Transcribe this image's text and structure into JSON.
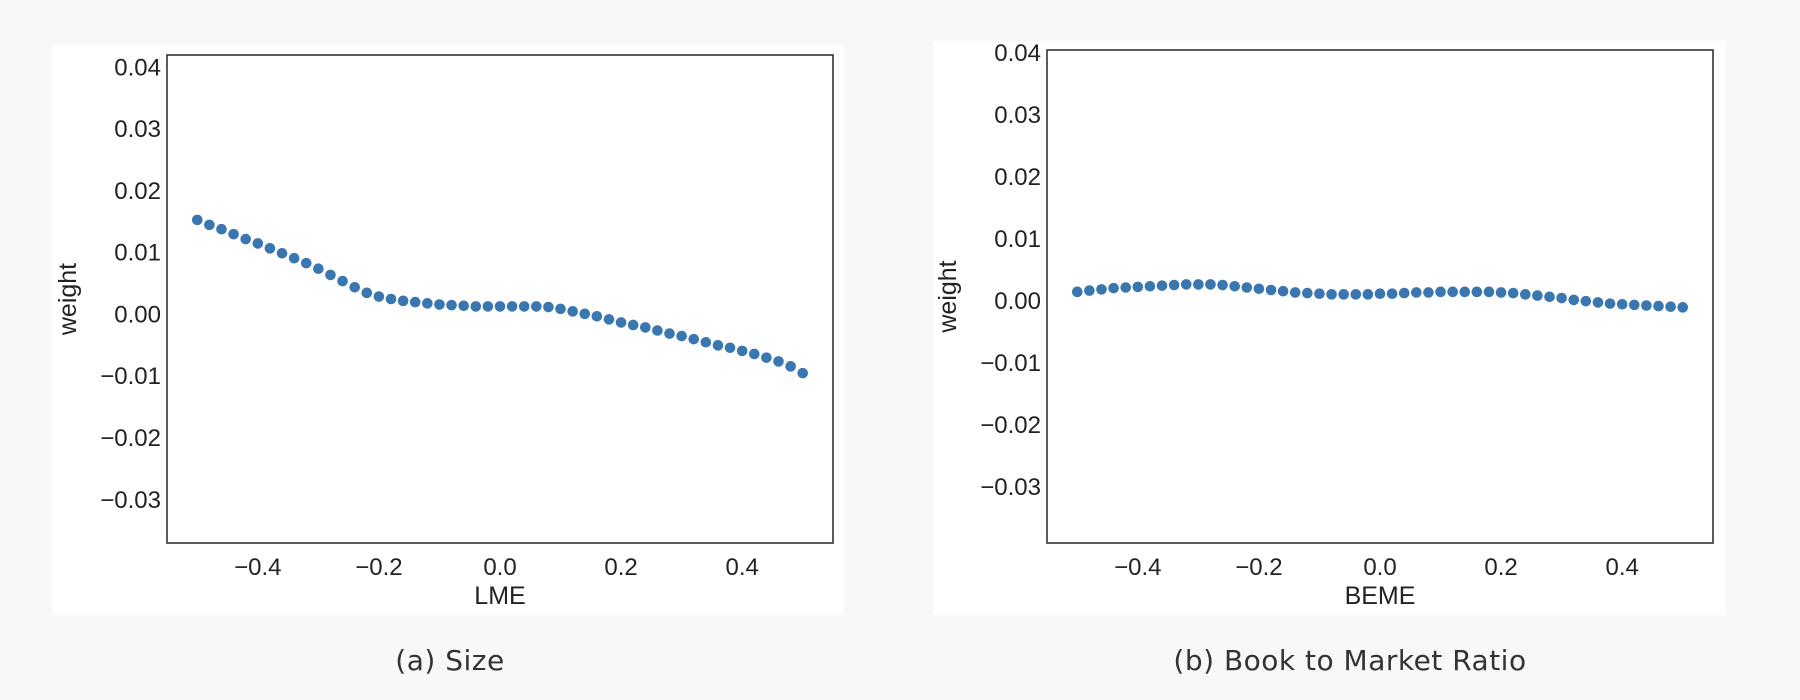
{
  "colors": {
    "marker": "#3a76b0",
    "axes": "#333333",
    "background": "#f7f8f8",
    "plot_bg": "#ffffff"
  },
  "captions": {
    "left": "(a) Size",
    "right": "(b) Book to Market Ratio"
  },
  "chart_data": [
    {
      "type": "scatter",
      "xlabel": "LME",
      "ylabel": "weight",
      "xlim": [
        -0.55,
        0.55
      ],
      "ylim": [
        -0.037,
        0.042
      ],
      "xticks": [
        "−0.4",
        "−0.2",
        "0.0",
        "0.2",
        "0.4"
      ],
      "xtick_values": [
        -0.4,
        -0.2,
        0.0,
        0.2,
        0.4
      ],
      "yticks": [
        "0.04",
        "0.03",
        "0.02",
        "0.01",
        "0.00",
        "−0.01",
        "−0.02",
        "−0.03"
      ],
      "ytick_values": [
        0.04,
        0.03,
        0.02,
        0.01,
        0.0,
        -0.01,
        -0.02,
        -0.03
      ],
      "grid": false,
      "x": [
        -0.5,
        -0.48,
        -0.46,
        -0.44,
        -0.42,
        -0.4,
        -0.38,
        -0.36,
        -0.34,
        -0.32,
        -0.3,
        -0.28,
        -0.26,
        -0.24,
        -0.22,
        -0.2,
        -0.18,
        -0.16,
        -0.14,
        -0.12,
        -0.1,
        -0.08,
        -0.06,
        -0.04,
        -0.02,
        0.0,
        0.02,
        0.04,
        0.06,
        0.08,
        0.1,
        0.12,
        0.14,
        0.16,
        0.18,
        0.2,
        0.22,
        0.24,
        0.26,
        0.28,
        0.3,
        0.32,
        0.34,
        0.36,
        0.38,
        0.4,
        0.42,
        0.44,
        0.46,
        0.48,
        0.5
      ],
      "y": [
        0.0153,
        0.0145,
        0.0138,
        0.013,
        0.0122,
        0.0115,
        0.0107,
        0.0099,
        0.0091,
        0.0083,
        0.0074,
        0.0064,
        0.0054,
        0.0044,
        0.0035,
        0.0029,
        0.0025,
        0.0022,
        0.002,
        0.0018,
        0.0016,
        0.0015,
        0.0014,
        0.0013,
        0.0013,
        0.0013,
        0.0013,
        0.0013,
        0.0013,
        0.0012,
        0.0009,
        0.0005,
        0.0001,
        -0.0003,
        -0.0008,
        -0.0013,
        -0.0017,
        -0.0021,
        -0.0026,
        -0.0031,
        -0.0035,
        -0.004,
        -0.0045,
        -0.005,
        -0.0054,
        -0.0059,
        -0.0064,
        -0.007,
        -0.0076,
        -0.0084,
        -0.0095
      ]
    },
    {
      "type": "scatter",
      "xlabel": "BEME",
      "ylabel": "weight",
      "xlim": [
        -0.55,
        0.55
      ],
      "ylim": [
        -0.039,
        0.0405
      ],
      "xticks": [
        "−0.4",
        "−0.2",
        "0.0",
        "0.2",
        "0.4"
      ],
      "xtick_values": [
        -0.4,
        -0.2,
        0.0,
        0.2,
        0.4
      ],
      "yticks": [
        "0.04",
        "0.03",
        "0.02",
        "0.01",
        "0.00",
        "−0.01",
        "−0.02",
        "−0.03"
      ],
      "ytick_values": [
        0.04,
        0.03,
        0.02,
        0.01,
        0.0,
        -0.01,
        -0.02,
        -0.03
      ],
      "grid": false,
      "x": [
        -0.5,
        -0.48,
        -0.46,
        -0.44,
        -0.42,
        -0.4,
        -0.38,
        -0.36,
        -0.34,
        -0.32,
        -0.3,
        -0.28,
        -0.26,
        -0.24,
        -0.22,
        -0.2,
        -0.18,
        -0.16,
        -0.14,
        -0.12,
        -0.1,
        -0.08,
        -0.06,
        -0.04,
        -0.02,
        0.0,
        0.02,
        0.04,
        0.06,
        0.08,
        0.1,
        0.12,
        0.14,
        0.16,
        0.18,
        0.2,
        0.22,
        0.24,
        0.26,
        0.28,
        0.3,
        0.32,
        0.34,
        0.36,
        0.38,
        0.4,
        0.42,
        0.44,
        0.46,
        0.48,
        0.5
      ],
      "y": [
        0.0015,
        0.0017,
        0.0019,
        0.0021,
        0.0022,
        0.0023,
        0.0024,
        0.0025,
        0.0026,
        0.0027,
        0.0027,
        0.0027,
        0.0026,
        0.0024,
        0.0022,
        0.002,
        0.0018,
        0.0016,
        0.0014,
        0.0013,
        0.0012,
        0.0011,
        0.0011,
        0.0011,
        0.0011,
        0.0012,
        0.0012,
        0.0013,
        0.0014,
        0.0014,
        0.0015,
        0.0015,
        0.0015,
        0.0015,
        0.0015,
        0.0014,
        0.0013,
        0.0011,
        0.0009,
        0.0007,
        0.0005,
        0.0002,
        0.0,
        -0.0002,
        -0.0004,
        -0.0005,
        -0.0006,
        -0.0007,
        -0.0008,
        -0.0009,
        -0.001
      ]
    }
  ]
}
